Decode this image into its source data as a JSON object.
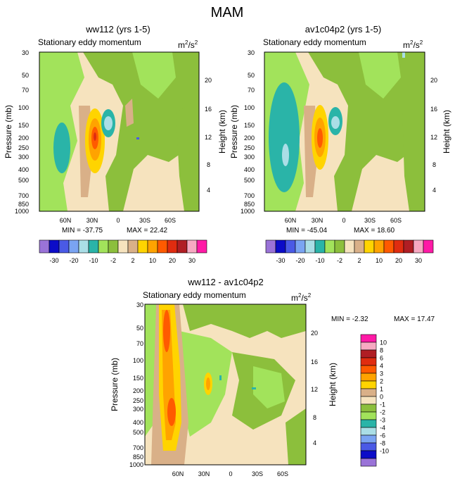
{
  "page_title": "MAM",
  "chart_data": [
    {
      "type": "heatmap",
      "title": "ww112 (yrs 1-5)",
      "subtitle": "Stationary eddy momentum",
      "units_base": "m",
      "units_exp": "2",
      "units_mid": "/s",
      "units_exp2": "2",
      "ylabel": "Pressure (mb)",
      "ylabel_right": "Height (km)",
      "yticks": [
        "30",
        "50",
        "70",
        "100",
        "150",
        "200",
        "250",
        "300",
        "400",
        "500",
        "700",
        "850",
        "1000"
      ],
      "yticks_right": [
        "20",
        "16",
        "12",
        "8",
        "4"
      ],
      "xticks": [
        "60N",
        "30N",
        "0",
        "30S",
        "60S"
      ],
      "min_label": "MIN = -37.75",
      "max_label": "MAX = 22.42",
      "ylim": [
        1000,
        30
      ]
    },
    {
      "type": "heatmap",
      "title": "av1c04p2 (yrs 1-5)",
      "subtitle": "Stationary eddy momentum",
      "units_base": "m",
      "units_exp": "2",
      "units_mid": "/s",
      "units_exp2": "2",
      "ylabel": "Pressure (mb)",
      "ylabel_right": "Height (km)",
      "yticks": [
        "30",
        "50",
        "70",
        "100",
        "150",
        "200",
        "250",
        "300",
        "400",
        "500",
        "700",
        "850",
        "1000"
      ],
      "yticks_right": [
        "20",
        "16",
        "12",
        "8",
        "4"
      ],
      "xticks": [
        "60N",
        "30N",
        "0",
        "30S",
        "60S"
      ],
      "min_label": "MIN = -45.04",
      "max_label": "MAX = 18.60",
      "ylim": [
        1000,
        30
      ]
    },
    {
      "type": "heatmap",
      "title": "ww112 - av1c04p2",
      "subtitle": "Stationary eddy momentum",
      "units_base": "m",
      "units_exp": "2",
      "units_mid": "/s",
      "units_exp2": "2",
      "ylabel": "Pressure (mb)",
      "ylabel_right": "Height (km)",
      "yticks": [
        "30",
        "50",
        "70",
        "100",
        "150",
        "200",
        "250",
        "300",
        "400",
        "500",
        "700",
        "850",
        "1000"
      ],
      "yticks_right": [
        "20",
        "16",
        "12",
        "8",
        "4"
      ],
      "xticks": [
        "60N",
        "30N",
        "0",
        "30S",
        "60S"
      ],
      "min_label": "MIN =  -2.32",
      "max_label": "MAX =  17.47",
      "ylim": [
        1000,
        30
      ]
    }
  ],
  "colorbar_top": {
    "labels": [
      "-30",
      "-20",
      "-10",
      "-2",
      "2",
      "10",
      "20",
      "30"
    ],
    "colors": [
      "#9a73d8",
      "#0c0cc8",
      "#4a5ae6",
      "#7aa4f2",
      "#aadee6",
      "#2ab4a8",
      "#a2e35b",
      "#8cbf3c",
      "#f6e3be",
      "#d9b088",
      "#ffd400",
      "#ffa300",
      "#ff5a00",
      "#e02c10",
      "#b01e24",
      "#f7a9c2",
      "#ff1aa6"
    ]
  },
  "colorbar_diff": {
    "labels": [
      "10",
      "8",
      "6",
      "4",
      "3",
      "2",
      "1",
      "0",
      "-1",
      "-2",
      "-3",
      "-4",
      "-6",
      "-8",
      "-10"
    ],
    "colors": [
      "#ff1aa6",
      "#f7a9c2",
      "#b01e24",
      "#e02c10",
      "#ff5a00",
      "#ffa300",
      "#ffd400",
      "#d9b088",
      "#f6e3be",
      "#8cbf3c",
      "#a2e35b",
      "#2ab4a8",
      "#aadee6",
      "#7aa4f2",
      "#4a5ae6",
      "#0c0cc8",
      "#9a73d8"
    ]
  },
  "colors": {
    "bg_cream": "#f6e3be",
    "green_olive": "#8cbf3c",
    "green_light": "#a2e35b",
    "tan": "#d9b088",
    "teal": "#2ab4a8",
    "light_blue": "#aadee6",
    "blue": "#4a5ae6",
    "yellow": "#ffd400",
    "orange": "#ffa300",
    "red_orange": "#ff5a00",
    "red": "#e02c10",
    "dark_red": "#b01e24"
  }
}
